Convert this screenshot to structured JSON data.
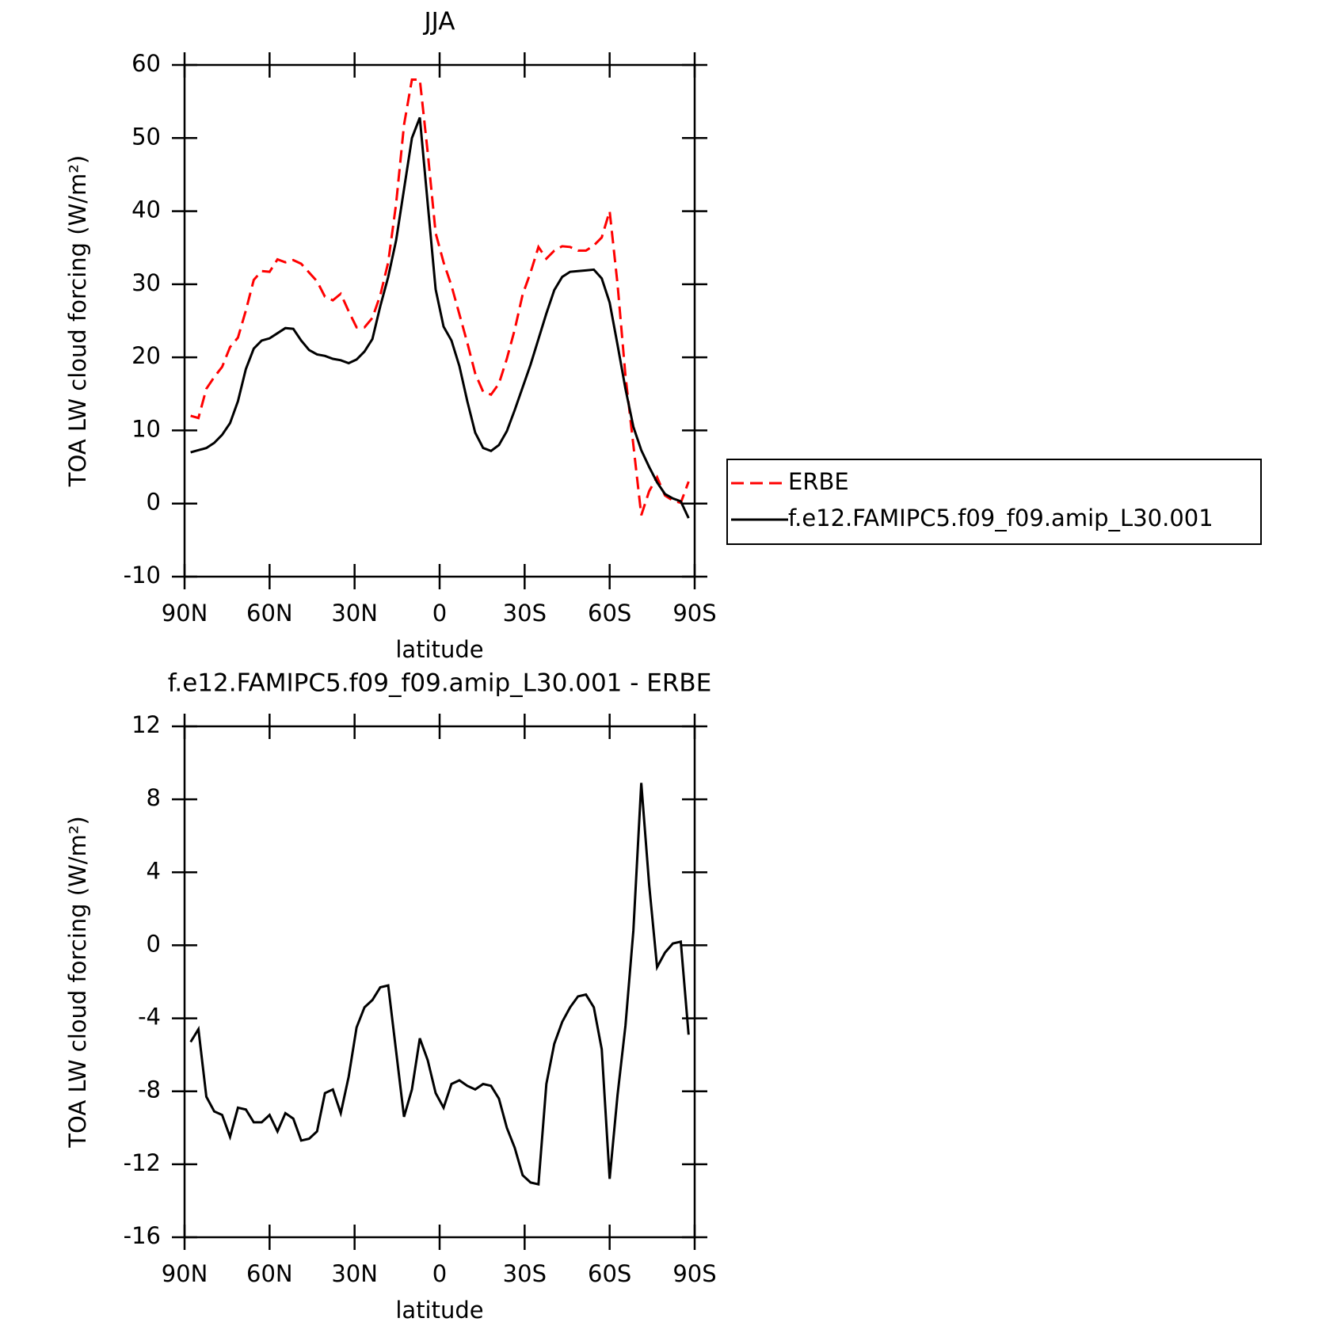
{
  "chart_data": [
    {
      "type": "line",
      "title": "JJA",
      "xlabel": "latitude",
      "ylabel": "TOA LW cloud forcing (W/m²)",
      "x": [
        87.86,
        85.1,
        82.31,
        79.53,
        76.74,
        73.95,
        71.16,
        68.37,
        65.58,
        62.79,
        60.0,
        57.21,
        54.42,
        51.63,
        48.84,
        46.04,
        43.25,
        40.46,
        37.67,
        34.88,
        32.09,
        29.3,
        26.51,
        23.72,
        20.93,
        18.14,
        15.35,
        12.56,
        9.77,
        6.98,
        4.19,
        1.4,
        -1.4,
        -4.19,
        -6.98,
        -9.77,
        -12.56,
        -15.35,
        -18.14,
        -20.93,
        -23.72,
        -26.51,
        -29.3,
        -32.09,
        -34.88,
        -37.67,
        -40.46,
        -43.25,
        -46.04,
        -48.84,
        -51.63,
        -54.42,
        -57.21,
        -60.0,
        -62.79,
        -65.58,
        -68.37,
        -71.16,
        -73.95,
        -76.74,
        -79.53,
        -82.31,
        -85.1,
        -87.86
      ],
      "series": [
        {
          "name": "ERBE",
          "color": "#ff0000",
          "linestyle": "dashed",
          "values": [
            12.0,
            11.7,
            15.7,
            17.3,
            18.7,
            21.4,
            22.7,
            26.4,
            30.6,
            31.8,
            31.7,
            33.4,
            33.0,
            33.3,
            32.8,
            31.6,
            30.4,
            28.3,
            27.8,
            28.7,
            26.3,
            24.1,
            24.1,
            25.4,
            28.5,
            33.0,
            41.0,
            51.8,
            58.0,
            58.0,
            48.0,
            37.0,
            33.0,
            29.8,
            25.9,
            22.0,
            17.8,
            15.3,
            14.9,
            16.4,
            19.8,
            23.8,
            28.6,
            31.6,
            35.1,
            33.5,
            34.6,
            35.2,
            35.1,
            34.6,
            34.6,
            35.3,
            36.4,
            40.0,
            30.0,
            17.5,
            8.0,
            -1.6,
            1.7,
            3.6,
            1.1,
            0.4,
            0.1,
            3.0
          ]
        },
        {
          "name": "f.e12.FAMIPC5.f09_f09.amip_L30.001",
          "color": "#000000",
          "linestyle": "solid",
          "values": [
            7.0,
            7.3,
            7.6,
            8.3,
            9.4,
            11.0,
            14.0,
            18.4,
            21.2,
            22.3,
            22.6,
            23.3,
            24.0,
            23.9,
            22.3,
            21.0,
            20.4,
            20.2,
            19.8,
            19.6,
            19.2,
            19.7,
            20.8,
            22.5,
            27.0,
            31.0,
            36.0,
            43.0,
            50.0,
            52.8,
            41.0,
            29.3,
            24.2,
            22.3,
            18.8,
            14.0,
            9.7,
            7.6,
            7.2,
            8.0,
            9.9,
            12.8,
            15.9,
            19.0,
            22.5,
            26.0,
            29.2,
            31.0,
            31.7,
            31.8,
            31.9,
            32.0,
            30.8,
            27.5,
            21.7,
            15.7,
            10.5,
            7.3,
            5.0,
            2.9,
            1.3,
            0.7,
            0.3,
            -2.0
          ]
        }
      ],
      "xlim": [
        90,
        -90
      ],
      "xticks": [
        {
          "value": 90,
          "label": "90N"
        },
        {
          "value": 60,
          "label": "60N"
        },
        {
          "value": 30,
          "label": "30N"
        },
        0,
        {
          "value": -30,
          "label": "30S"
        },
        {
          "value": -60,
          "label": "60S"
        },
        {
          "value": -90,
          "label": "90S"
        }
      ],
      "ylim": [
        -10,
        60
      ],
      "yticks": [
        -10,
        0,
        10,
        20,
        30,
        40,
        50,
        60
      ],
      "legend": "right"
    },
    {
      "type": "line",
      "title": "f.e12.FAMIPC5.f09_f09.amip_L30.001 - ERBE",
      "xlabel": "latitude",
      "ylabel": "TOA LW cloud forcing (W/m²)",
      "x": [
        87.86,
        85.1,
        82.31,
        79.53,
        76.74,
        73.95,
        71.16,
        68.37,
        65.58,
        62.79,
        60.0,
        57.21,
        54.42,
        51.63,
        48.84,
        46.04,
        43.25,
        40.46,
        37.67,
        34.88,
        32.09,
        29.3,
        26.51,
        23.72,
        20.93,
        18.14,
        15.35,
        12.56,
        9.77,
        6.98,
        4.19,
        1.4,
        -1.4,
        -4.19,
        -6.98,
        -9.77,
        -12.56,
        -15.35,
        -18.14,
        -20.93,
        -23.72,
        -26.51,
        -29.3,
        -32.09,
        -34.88,
        -37.67,
        -40.46,
        -43.25,
        -46.04,
        -48.84,
        -51.63,
        -54.42,
        -57.21,
        -60.0,
        -62.79,
        -65.58,
        -68.37,
        -71.16,
        -73.95,
        -76.74,
        -79.53,
        -82.31,
        -85.1,
        -87.86
      ],
      "series": [
        {
          "color": "#000000",
          "linestyle": "solid",
          "values": [
            -5.3,
            -4.6,
            -8.3,
            -9.1,
            -9.3,
            -10.5,
            -8.9,
            -9.0,
            -9.7,
            -9.7,
            -9.3,
            -10.2,
            -9.2,
            -9.5,
            -10.7,
            -10.6,
            -10.2,
            -8.1,
            -7.9,
            -9.2,
            -7.2,
            -4.5,
            -3.4,
            -3.0,
            -2.3,
            -2.2,
            -5.8,
            -9.4,
            -7.9,
            -5.1,
            -6.3,
            -8.1,
            -8.9,
            -7.6,
            -7.4,
            -7.7,
            -7.9,
            -7.6,
            -7.7,
            -8.4,
            -10.0,
            -11.1,
            -12.6,
            -13.0,
            -13.1,
            -7.6,
            -5.4,
            -4.2,
            -3.4,
            -2.8,
            -2.7,
            -3.4,
            -5.7,
            -12.8,
            -8.2,
            -4.4,
            0.8,
            8.9,
            3.3,
            -1.2,
            -0.4,
            0.1,
            0.2,
            -4.9
          ]
        }
      ],
      "xlim": [
        90,
        -90
      ],
      "xticks": [
        {
          "value": 90,
          "label": "90N"
        },
        {
          "value": 60,
          "label": "60N"
        },
        {
          "value": 30,
          "label": "30N"
        },
        0,
        {
          "value": -30,
          "label": "30S"
        },
        {
          "value": -60,
          "label": "60S"
        },
        {
          "value": -90,
          "label": "90S"
        }
      ],
      "ylim": [
        -16,
        12
      ],
      "yticks": [
        -16,
        -12,
        -8,
        -4,
        0,
        4,
        8,
        12
      ]
    }
  ]
}
